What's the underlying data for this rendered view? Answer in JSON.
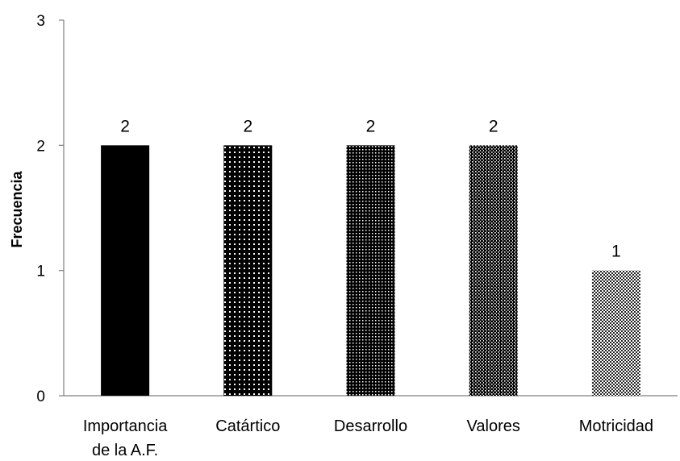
{
  "chart_data": {
    "type": "bar",
    "title": "",
    "xlabel": "",
    "ylabel": "Frecuencia",
    "ylim": [
      0,
      3
    ],
    "yticks": [
      "0",
      "1",
      "2",
      "3"
    ],
    "grid": false,
    "legend": "none",
    "categories": [
      [
        "Importancia",
        "de la A.F."
      ],
      [
        "Catártico"
      ],
      [
        "Desarrollo"
      ],
      [
        "Valores"
      ],
      [
        "Motricidad"
      ]
    ],
    "values": [
      2,
      2,
      2,
      2,
      1
    ],
    "data_labels": [
      "2",
      "2",
      "2",
      "2",
      "1"
    ],
    "fills": [
      "solid-black",
      "sparse-dots",
      "medium-dots",
      "dense-stripes",
      "checker"
    ]
  },
  "colors": {
    "bar_dark": "#000000",
    "background": "#ffffff",
    "axis": "#7f7f7f"
  }
}
